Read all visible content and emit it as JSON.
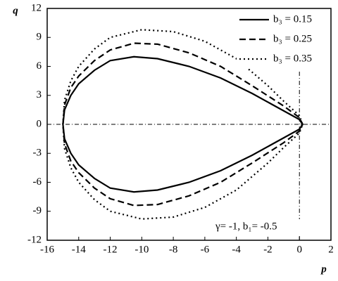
{
  "chart_data": {
    "type": "line",
    "x_label": "p",
    "y_label": "q",
    "annotation": "γ= -1, b₁= -0.5",
    "xlim": [
      -16,
      2
    ],
    "xticks": [
      -16,
      -14,
      -12,
      -10,
      -8,
      -6,
      -4,
      -2,
      0,
      2
    ],
    "ylim": [
      -12,
      12
    ],
    "yticks": [
      -12,
      -9,
      -6,
      -3,
      0,
      3,
      6,
      9,
      12
    ],
    "reference_lines": {
      "x": 0,
      "y": 0
    },
    "legend": "upper right",
    "series": [
      {
        "name": "b₃ = 0.15",
        "color": "#000000",
        "dash": "solid",
        "x": [
          -15,
          -14.9,
          -14.5,
          -14,
          -13,
          -12,
          -10.5,
          -9,
          -7,
          -5,
          -3,
          -1,
          0,
          0.2,
          0,
          -1,
          -3,
          -5,
          -7,
          -9,
          -10.5,
          -12,
          -13,
          -14,
          -14.5,
          -14.9
        ],
        "values": [
          0,
          1.5,
          3,
          4.2,
          5.6,
          6.6,
          7,
          6.8,
          6,
          4.8,
          3.2,
          1.4,
          0.5,
          0,
          -0.5,
          -1.4,
          -3.2,
          -4.8,
          -6,
          -6.8,
          -7,
          -6.6,
          -5.6,
          -4.2,
          -3,
          -1.5
        ]
      },
      {
        "name": "b₃ = 0.25",
        "color": "#000000",
        "dash": "dashed",
        "x": [
          -15,
          -14.9,
          -14.5,
          -14,
          -13,
          -12,
          -10.5,
          -9,
          -7,
          -5,
          -3,
          -1,
          0,
          0.2,
          0,
          -1,
          -3,
          -5,
          -7,
          -9,
          -10.5,
          -12,
          -13,
          -14,
          -14.5,
          -14.9
        ],
        "values": [
          0,
          2,
          3.8,
          5,
          6.6,
          7.7,
          8.4,
          8.3,
          7.4,
          6,
          4,
          1.9,
          0.7,
          0,
          -0.7,
          -1.9,
          -4,
          -6,
          -7.4,
          -8.3,
          -8.4,
          -7.7,
          -6.6,
          -5,
          -3.8,
          -2
        ]
      },
      {
        "name": "b₃ = 0.35",
        "color": "#000000",
        "dash": "dotted",
        "x": [
          -15,
          -14.9,
          -14.5,
          -14,
          -13,
          -12,
          -10,
          -8,
          -6,
          -4,
          -2,
          -1,
          0,
          0.2,
          0,
          -1,
          -2,
          -4,
          -6,
          -8,
          -10,
          -12,
          -13,
          -14,
          -14.5,
          -14.9
        ],
        "values": [
          0,
          2.5,
          4.5,
          6,
          7.8,
          9,
          9.8,
          9.6,
          8.6,
          6.8,
          4,
          2.4,
          0.9,
          0,
          -0.9,
          -2.4,
          -4,
          -6.8,
          -8.6,
          -9.6,
          -9.8,
          -9,
          -7.8,
          -6,
          -4.5,
          -2.5
        ]
      }
    ]
  }
}
